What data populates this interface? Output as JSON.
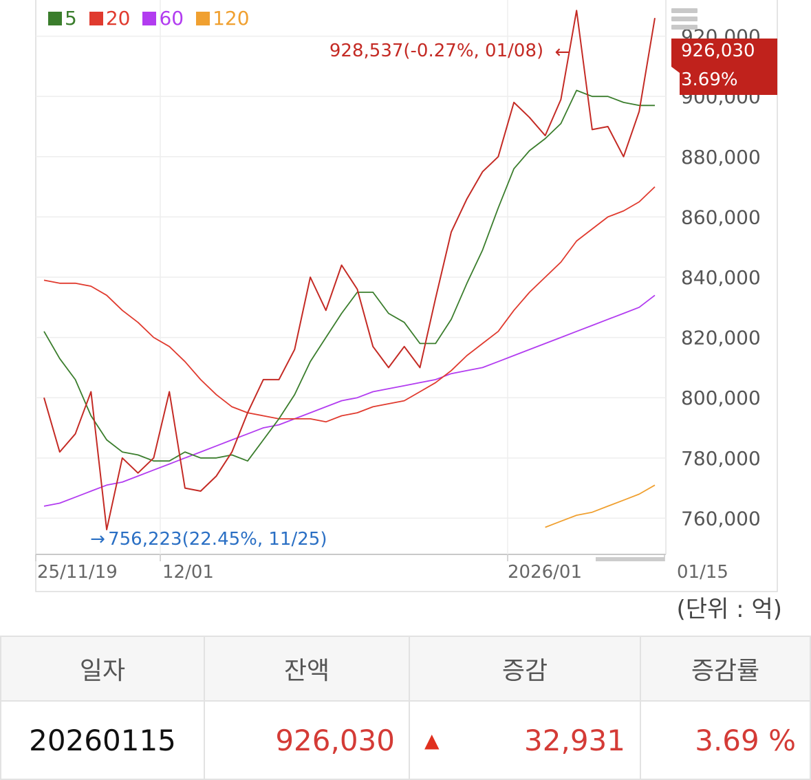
{
  "legend": [
    {
      "label": "5",
      "color": "#3a7d2c"
    },
    {
      "label": "20",
      "color": "#e03a2e"
    },
    {
      "label": "60",
      "color": "#b23cf0"
    },
    {
      "label": "120",
      "color": "#f0a030"
    }
  ],
  "unit_label": "(단위 : 억)",
  "table": {
    "headers": [
      "일자",
      "잔액",
      "증감",
      "증감률"
    ],
    "row": {
      "date": "20260115",
      "balance": "926,030",
      "change_icon": "up-triangle-icon",
      "change": "32,931",
      "rate": "3.69 %"
    }
  },
  "chart_data": {
    "type": "line",
    "y_ticks": [
      "760,000",
      "780,000",
      "800,000",
      "820,000",
      "840,000",
      "860,000",
      "880,000",
      "900,000"
    ],
    "x_ticks": [
      "25/11/19",
      "12/01",
      "2026/01",
      "01/15"
    ],
    "ylim": [
      748000,
      932000
    ],
    "grid": true,
    "legend_position": "top-left",
    "max_annotation": "928,537(-0.27%, 01/08)",
    "min_annotation": "756,223(22.45%, 11/25)",
    "last_value_badge": {
      "value": "926,030",
      "percent": "3.69%",
      "color": "#c0221c"
    },
    "series": [
      {
        "name": "balance",
        "color": "#c42a24",
        "width": 2,
        "values": [
          800000,
          782000,
          788000,
          802000,
          756223,
          780000,
          775000,
          780000,
          802000,
          770000,
          769000,
          774000,
          782000,
          795000,
          806000,
          806000,
          816000,
          840000,
          829000,
          844000,
          836000,
          817000,
          810000,
          817000,
          810000,
          833000,
          855000,
          866000,
          875000,
          880000,
          898000,
          893000,
          887000,
          899000,
          928537,
          889000,
          890000,
          880000,
          895000,
          926030
        ]
      },
      {
        "name": "5",
        "color": "#3a7d2c",
        "width": 1.8,
        "values": [
          822000,
          813000,
          806000,
          794000,
          786000,
          782000,
          781000,
          779000,
          779000,
          782000,
          780000,
          780000,
          781000,
          779000,
          786000,
          793000,
          801000,
          812000,
          820000,
          828000,
          835000,
          835000,
          828000,
          825000,
          818000,
          818000,
          826000,
          838000,
          849000,
          863000,
          876000,
          882000,
          886000,
          891000,
          902000,
          900000,
          900000,
          898000,
          897000,
          897000
        ]
      },
      {
        "name": "20",
        "color": "#e03a2e",
        "width": 1.8,
        "values": [
          839000,
          838000,
          838000,
          837000,
          834000,
          829000,
          825000,
          820000,
          817000,
          812000,
          806000,
          801000,
          797000,
          795000,
          794000,
          793000,
          793000,
          793000,
          792000,
          794000,
          795000,
          797000,
          798000,
          799000,
          802000,
          805000,
          809000,
          814000,
          818000,
          822000,
          829000,
          835000,
          840000,
          845000,
          852000,
          856000,
          860000,
          862000,
          865000,
          870000
        ]
      },
      {
        "name": "60",
        "color": "#b23cf0",
        "width": 1.8,
        "values": [
          764000,
          765000,
          767000,
          769000,
          771000,
          772000,
          774000,
          776000,
          778000,
          780000,
          782000,
          784000,
          786000,
          788000,
          790000,
          791000,
          793000,
          795000,
          797000,
          799000,
          800000,
          802000,
          803000,
          804000,
          805000,
          806000,
          808000,
          809000,
          810000,
          812000,
          814000,
          816000,
          818000,
          820000,
          822000,
          824000,
          826000,
          828000,
          830000,
          834000
        ]
      },
      {
        "name": "120",
        "color": "#f0a030",
        "width": 1.8,
        "values": [
          null,
          null,
          null,
          null,
          null,
          null,
          null,
          null,
          null,
          null,
          null,
          null,
          null,
          null,
          null,
          null,
          null,
          null,
          null,
          null,
          null,
          null,
          null,
          null,
          null,
          null,
          null,
          null,
          null,
          null,
          null,
          null,
          757000,
          759000,
          761000,
          762000,
          764000,
          766000,
          768000,
          771000
        ]
      }
    ]
  }
}
